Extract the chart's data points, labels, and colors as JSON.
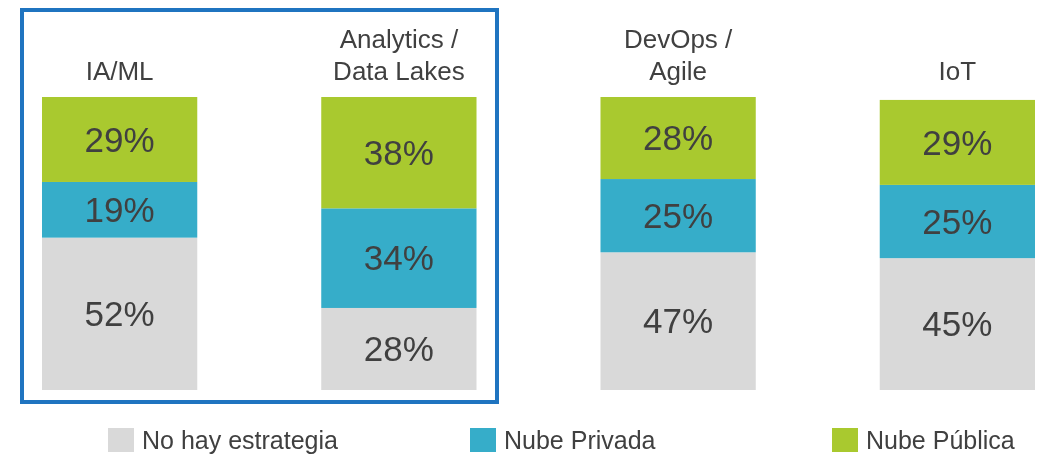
{
  "chart_data": {
    "type": "bar",
    "stacked": true,
    "legend": "bottom",
    "categories": [
      "IA/ML",
      "Analytics / Data Lakes",
      "DevOps / Agile",
      "IoT"
    ],
    "series": [
      {
        "name": "No hay estrategia",
        "color": "#d9d9d9",
        "values": [
          52,
          28,
          47,
          45
        ],
        "value_labels": [
          "52%",
          "28%",
          "47%",
          "45%"
        ]
      },
      {
        "name": "Nube Privada",
        "color": "#36adc9",
        "values": [
          19,
          34,
          25,
          25
        ],
        "value_labels": [
          "19%",
          "34%",
          "25%",
          "25%"
        ]
      },
      {
        "name": "Nube Pública",
        "color": "#a9c92f",
        "values": [
          29,
          38,
          28,
          29
        ],
        "value_labels": [
          "29%",
          "38%",
          "28%",
          "29%"
        ]
      }
    ]
  }
}
